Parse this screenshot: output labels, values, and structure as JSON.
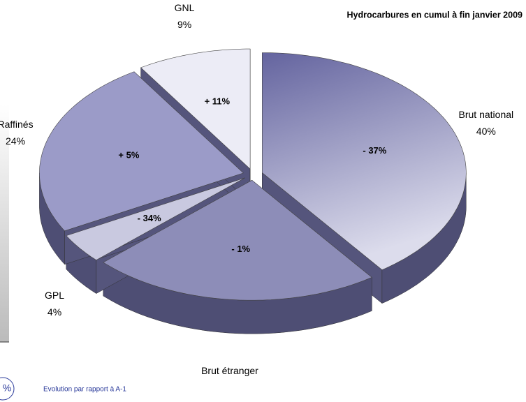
{
  "chart_data": {
    "type": "pie3d",
    "title": "Hydrocarbures en cumul à fin janvier 2009",
    "categories": [
      "Brut national",
      "Brut étranger",
      "GPL",
      "Raffinés",
      "GNL"
    ],
    "values": [
      40,
      23,
      4,
      24,
      9
    ],
    "value_labels": [
      "40%",
      null,
      "4%",
      "24%",
      "9%"
    ],
    "evolution_labels": [
      "- 37%",
      "- 1%",
      "- 34%",
      "+ 5%",
      "+ 11%"
    ],
    "colors": [
      "#7070aa",
      "#8d8db8",
      "#c9c9e0",
      "#9b9bc8",
      "#ececf6"
    ],
    "legend_symbol": "%",
    "legend_text": "Evolution par rapport à A-1"
  }
}
